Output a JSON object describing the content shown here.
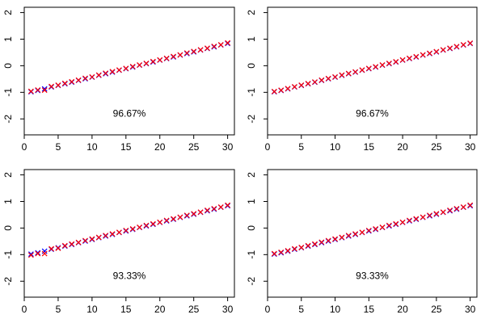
{
  "chart_data": [
    {
      "type": "scatter",
      "title": "",
      "xlabel": "",
      "ylabel": "",
      "xlim": [
        0,
        31
      ],
      "ylim": [
        -2.6,
        2.2
      ],
      "xticks": [
        0,
        5,
        10,
        15,
        20,
        25,
        30
      ],
      "yticks": [
        -2,
        -1,
        0,
        1,
        2
      ],
      "annotation": "96.67%",
      "grid": false,
      "legend": "none",
      "series": [
        {
          "marker": "x",
          "color": "#0000ff",
          "x": [
            1,
            2,
            3,
            4,
            5,
            6,
            7,
            8,
            9,
            10,
            11,
            12,
            13,
            14,
            15,
            16,
            17,
            18,
            19,
            20,
            21,
            22,
            23,
            24,
            25,
            26,
            27,
            28,
            29,
            30
          ],
          "y": [
            -0.98,
            -0.93,
            -0.87,
            -0.8,
            -0.74,
            -0.68,
            -0.62,
            -0.55,
            -0.49,
            -0.43,
            -0.36,
            -0.3,
            -0.24,
            -0.17,
            -0.11,
            -0.05,
            0.02,
            0.08,
            0.14,
            0.21,
            0.27,
            0.33,
            0.4,
            0.46,
            0.52,
            0.59,
            0.65,
            0.71,
            0.78,
            0.84
          ]
        },
        {
          "marker": "x",
          "color": "#ff0000",
          "x": [
            1,
            2,
            3,
            4,
            5,
            6,
            7,
            8,
            9,
            10,
            11,
            12,
            13,
            14,
            15,
            16,
            17,
            18,
            19,
            20,
            21,
            22,
            23,
            24,
            25,
            26,
            27,
            28,
            29,
            30
          ],
          "y": [
            -0.96,
            -0.91,
            -0.92,
            -0.78,
            -0.73,
            -0.66,
            -0.6,
            -0.54,
            -0.47,
            -0.42,
            -0.35,
            -0.28,
            -0.22,
            -0.16,
            -0.1,
            -0.03,
            0.03,
            0.09,
            0.16,
            0.22,
            0.28,
            0.35,
            0.41,
            0.48,
            0.54,
            0.6,
            0.66,
            0.73,
            0.79,
            0.86
          ]
        }
      ]
    },
    {
      "type": "scatter",
      "title": "",
      "xlabel": "",
      "ylabel": "",
      "xlim": [
        0,
        31
      ],
      "ylim": [
        -2.6,
        2.2
      ],
      "xticks": [
        0,
        5,
        10,
        15,
        20,
        25,
        30
      ],
      "yticks": [
        -2,
        -1,
        0,
        1,
        2
      ],
      "annotation": "96.67%",
      "grid": false,
      "legend": "none",
      "series": [
        {
          "marker": "x",
          "color": "#0000ff",
          "x": [
            1,
            2,
            3,
            4,
            5,
            6,
            7,
            8,
            9,
            10,
            11,
            12,
            13,
            14,
            15,
            16,
            17,
            18,
            19,
            20,
            21,
            22,
            23,
            24,
            25,
            26,
            27,
            28,
            29,
            30
          ],
          "y": [
            -0.98,
            -0.93,
            -0.87,
            -0.8,
            -0.74,
            -0.68,
            -0.62,
            -0.55,
            -0.49,
            -0.43,
            -0.36,
            -0.3,
            -0.24,
            -0.17,
            -0.11,
            -0.05,
            0.02,
            0.08,
            0.14,
            0.21,
            0.27,
            0.33,
            0.4,
            0.46,
            0.52,
            0.59,
            0.65,
            0.71,
            0.78,
            0.84
          ]
        },
        {
          "marker": "x",
          "color": "#ff0000",
          "x": [
            1,
            2,
            3,
            4,
            5,
            6,
            7,
            8,
            9,
            10,
            11,
            12,
            13,
            14,
            15,
            16,
            17,
            18,
            19,
            20,
            21,
            22,
            23,
            24,
            25,
            26,
            27,
            28,
            29,
            30
          ],
          "y": [
            -0.97,
            -0.92,
            -0.86,
            -0.79,
            -0.73,
            -0.67,
            -0.61,
            -0.54,
            -0.48,
            -0.42,
            -0.35,
            -0.29,
            -0.23,
            -0.16,
            -0.1,
            -0.04,
            0.03,
            0.09,
            0.15,
            0.22,
            0.28,
            0.34,
            0.41,
            0.47,
            0.53,
            0.6,
            0.66,
            0.72,
            0.79,
            0.85
          ]
        }
      ]
    },
    {
      "type": "scatter",
      "title": "",
      "xlabel": "",
      "ylabel": "",
      "xlim": [
        0,
        31
      ],
      "ylim": [
        -2.6,
        2.2
      ],
      "xticks": [
        0,
        5,
        10,
        15,
        20,
        25,
        30
      ],
      "yticks": [
        -2,
        -1,
        0,
        1,
        2
      ],
      "annotation": "93.33%",
      "grid": false,
      "legend": "none",
      "series": [
        {
          "marker": "x",
          "color": "#0000ff",
          "x": [
            1,
            2,
            3,
            4,
            5,
            6,
            7,
            8,
            9,
            10,
            11,
            12,
            13,
            14,
            15,
            16,
            17,
            18,
            19,
            20,
            21,
            22,
            23,
            24,
            25,
            26,
            27,
            28,
            29,
            30
          ],
          "y": [
            -0.98,
            -0.93,
            -0.87,
            -0.8,
            -0.74,
            -0.68,
            -0.62,
            -0.55,
            -0.49,
            -0.43,
            -0.36,
            -0.3,
            -0.24,
            -0.17,
            -0.11,
            -0.05,
            0.02,
            0.08,
            0.14,
            0.21,
            0.27,
            0.33,
            0.4,
            0.46,
            0.52,
            0.59,
            0.65,
            0.71,
            0.78,
            0.84
          ]
        },
        {
          "marker": "x",
          "color": "#ff0000",
          "x": [
            1,
            2,
            3,
            4,
            5,
            6,
            7,
            8,
            9,
            10,
            11,
            12,
            13,
            14,
            15,
            16,
            17,
            18,
            19,
            20,
            21,
            22,
            23,
            24,
            25,
            26,
            27,
            28,
            29,
            30
          ],
          "y": [
            -1.02,
            -0.96,
            -0.96,
            -0.78,
            -0.76,
            -0.66,
            -0.6,
            -0.54,
            -0.47,
            -0.41,
            -0.35,
            -0.28,
            -0.22,
            -0.16,
            -0.09,
            -0.03,
            0.03,
            0.1,
            0.16,
            0.22,
            0.29,
            0.35,
            0.41,
            0.48,
            0.54,
            0.6,
            0.67,
            0.73,
            0.79,
            0.86
          ]
        }
      ]
    },
    {
      "type": "scatter",
      "title": "",
      "xlabel": "",
      "ylabel": "",
      "xlim": [
        0,
        31
      ],
      "ylim": [
        -2.6,
        2.2
      ],
      "xticks": [
        0,
        5,
        10,
        15,
        20,
        25,
        30
      ],
      "yticks": [
        -2,
        -1,
        0,
        1,
        2
      ],
      "annotation": "93.33%",
      "grid": false,
      "legend": "none",
      "series": [
        {
          "marker": "x",
          "color": "#0000ff",
          "x": [
            1,
            2,
            3,
            4,
            5,
            6,
            7,
            8,
            9,
            10,
            11,
            12,
            13,
            14,
            15,
            16,
            17,
            18,
            19,
            20,
            21,
            22,
            23,
            24,
            25,
            26,
            27,
            28,
            29,
            30
          ],
          "y": [
            -0.98,
            -0.93,
            -0.87,
            -0.8,
            -0.74,
            -0.68,
            -0.62,
            -0.55,
            -0.49,
            -0.43,
            -0.36,
            -0.3,
            -0.24,
            -0.17,
            -0.11,
            -0.05,
            0.02,
            0.08,
            0.14,
            0.21,
            0.27,
            0.33,
            0.4,
            0.46,
            0.52,
            0.59,
            0.65,
            0.71,
            0.78,
            0.84
          ]
        },
        {
          "marker": "x",
          "color": "#ff0000",
          "x": [
            1,
            2,
            3,
            4,
            5,
            6,
            7,
            8,
            9,
            10,
            11,
            12,
            13,
            14,
            15,
            16,
            17,
            18,
            19,
            20,
            21,
            22,
            23,
            24,
            25,
            26,
            27,
            28,
            29,
            30
          ],
          "y": [
            -0.96,
            -0.91,
            -0.85,
            -0.78,
            -0.73,
            -0.66,
            -0.6,
            -0.53,
            -0.47,
            -0.41,
            -0.35,
            -0.28,
            -0.22,
            -0.16,
            -0.09,
            -0.03,
            0.03,
            0.1,
            0.16,
            0.22,
            0.29,
            0.35,
            0.41,
            0.48,
            0.54,
            0.6,
            0.67,
            0.73,
            0.79,
            0.86
          ]
        }
      ]
    }
  ]
}
